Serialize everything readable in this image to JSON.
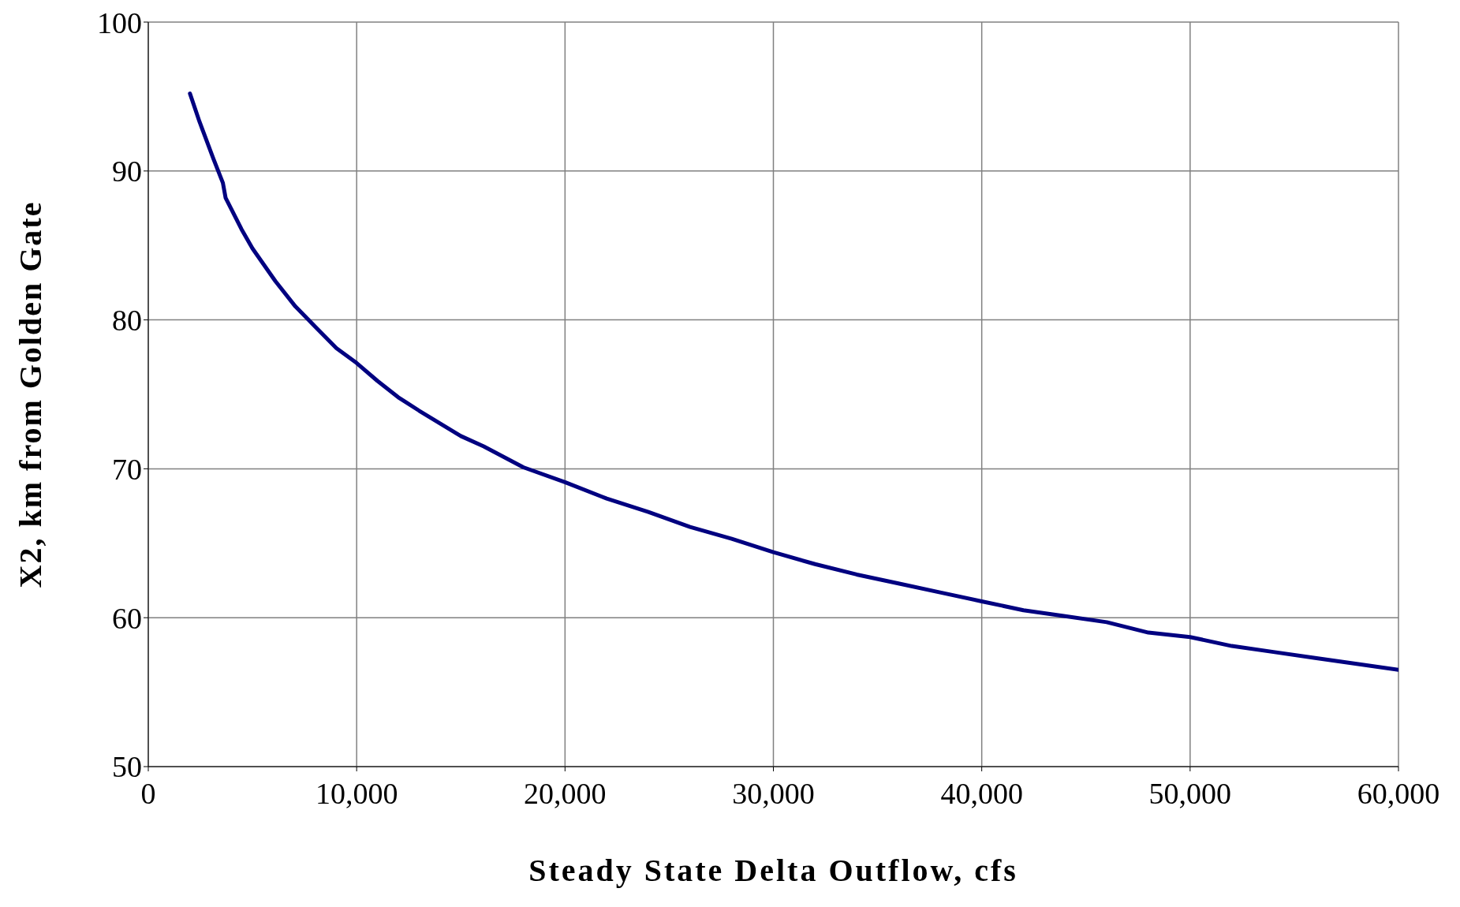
{
  "chart_data": {
    "type": "line",
    "xlabel": "Steady State Delta Outflow, cfs",
    "ylabel": "X2, km from Golden Gate",
    "x": [
      2000,
      2460,
      3130,
      3580,
      3710,
      4470,
      5000,
      6100,
      7060,
      8040,
      9030,
      10000,
      11000,
      12000,
      13000,
      15000,
      16100,
      18000,
      20000,
      22000,
      24000,
      26000,
      28000,
      30000,
      32000,
      34000,
      36000,
      38000,
      40000,
      42000,
      44000,
      46000,
      48000,
      50000,
      52000,
      54000,
      56000,
      58000,
      60000
    ],
    "series": [
      {
        "color": "#000080",
        "values": [
          95.2,
          93.3,
          90.8,
          89.2,
          88.2,
          86.1,
          84.8,
          82.6,
          80.9,
          79.5,
          78.1,
          77.1,
          75.9,
          74.8,
          73.9,
          72.2,
          71.5,
          70.1,
          69.1,
          68.0,
          67.1,
          66.1,
          65.3,
          64.4,
          63.6,
          62.9,
          62.3,
          61.7,
          61.1,
          60.5,
          60.1,
          59.7,
          59.0,
          58.7,
          58.1,
          57.7,
          57.3,
          56.9,
          56.5
        ]
      }
    ],
    "xlim": [
      0,
      60000
    ],
    "xticks": [
      0,
      {
        "value": 10000,
        "label": "10,000"
      },
      {
        "value": 20000,
        "label": "20,000"
      },
      {
        "value": 30000,
        "label": "30,000"
      },
      {
        "value": 40000,
        "label": "40,000"
      },
      {
        "value": 50000,
        "label": "50,000"
      },
      {
        "value": 60000,
        "label": "60,000"
      }
    ],
    "ylim": [
      50,
      100
    ],
    "yticks": [
      50,
      60,
      70,
      80,
      90,
      100
    ],
    "grid": true,
    "marker": "none",
    "line_style": "solid",
    "legend": false
  }
}
